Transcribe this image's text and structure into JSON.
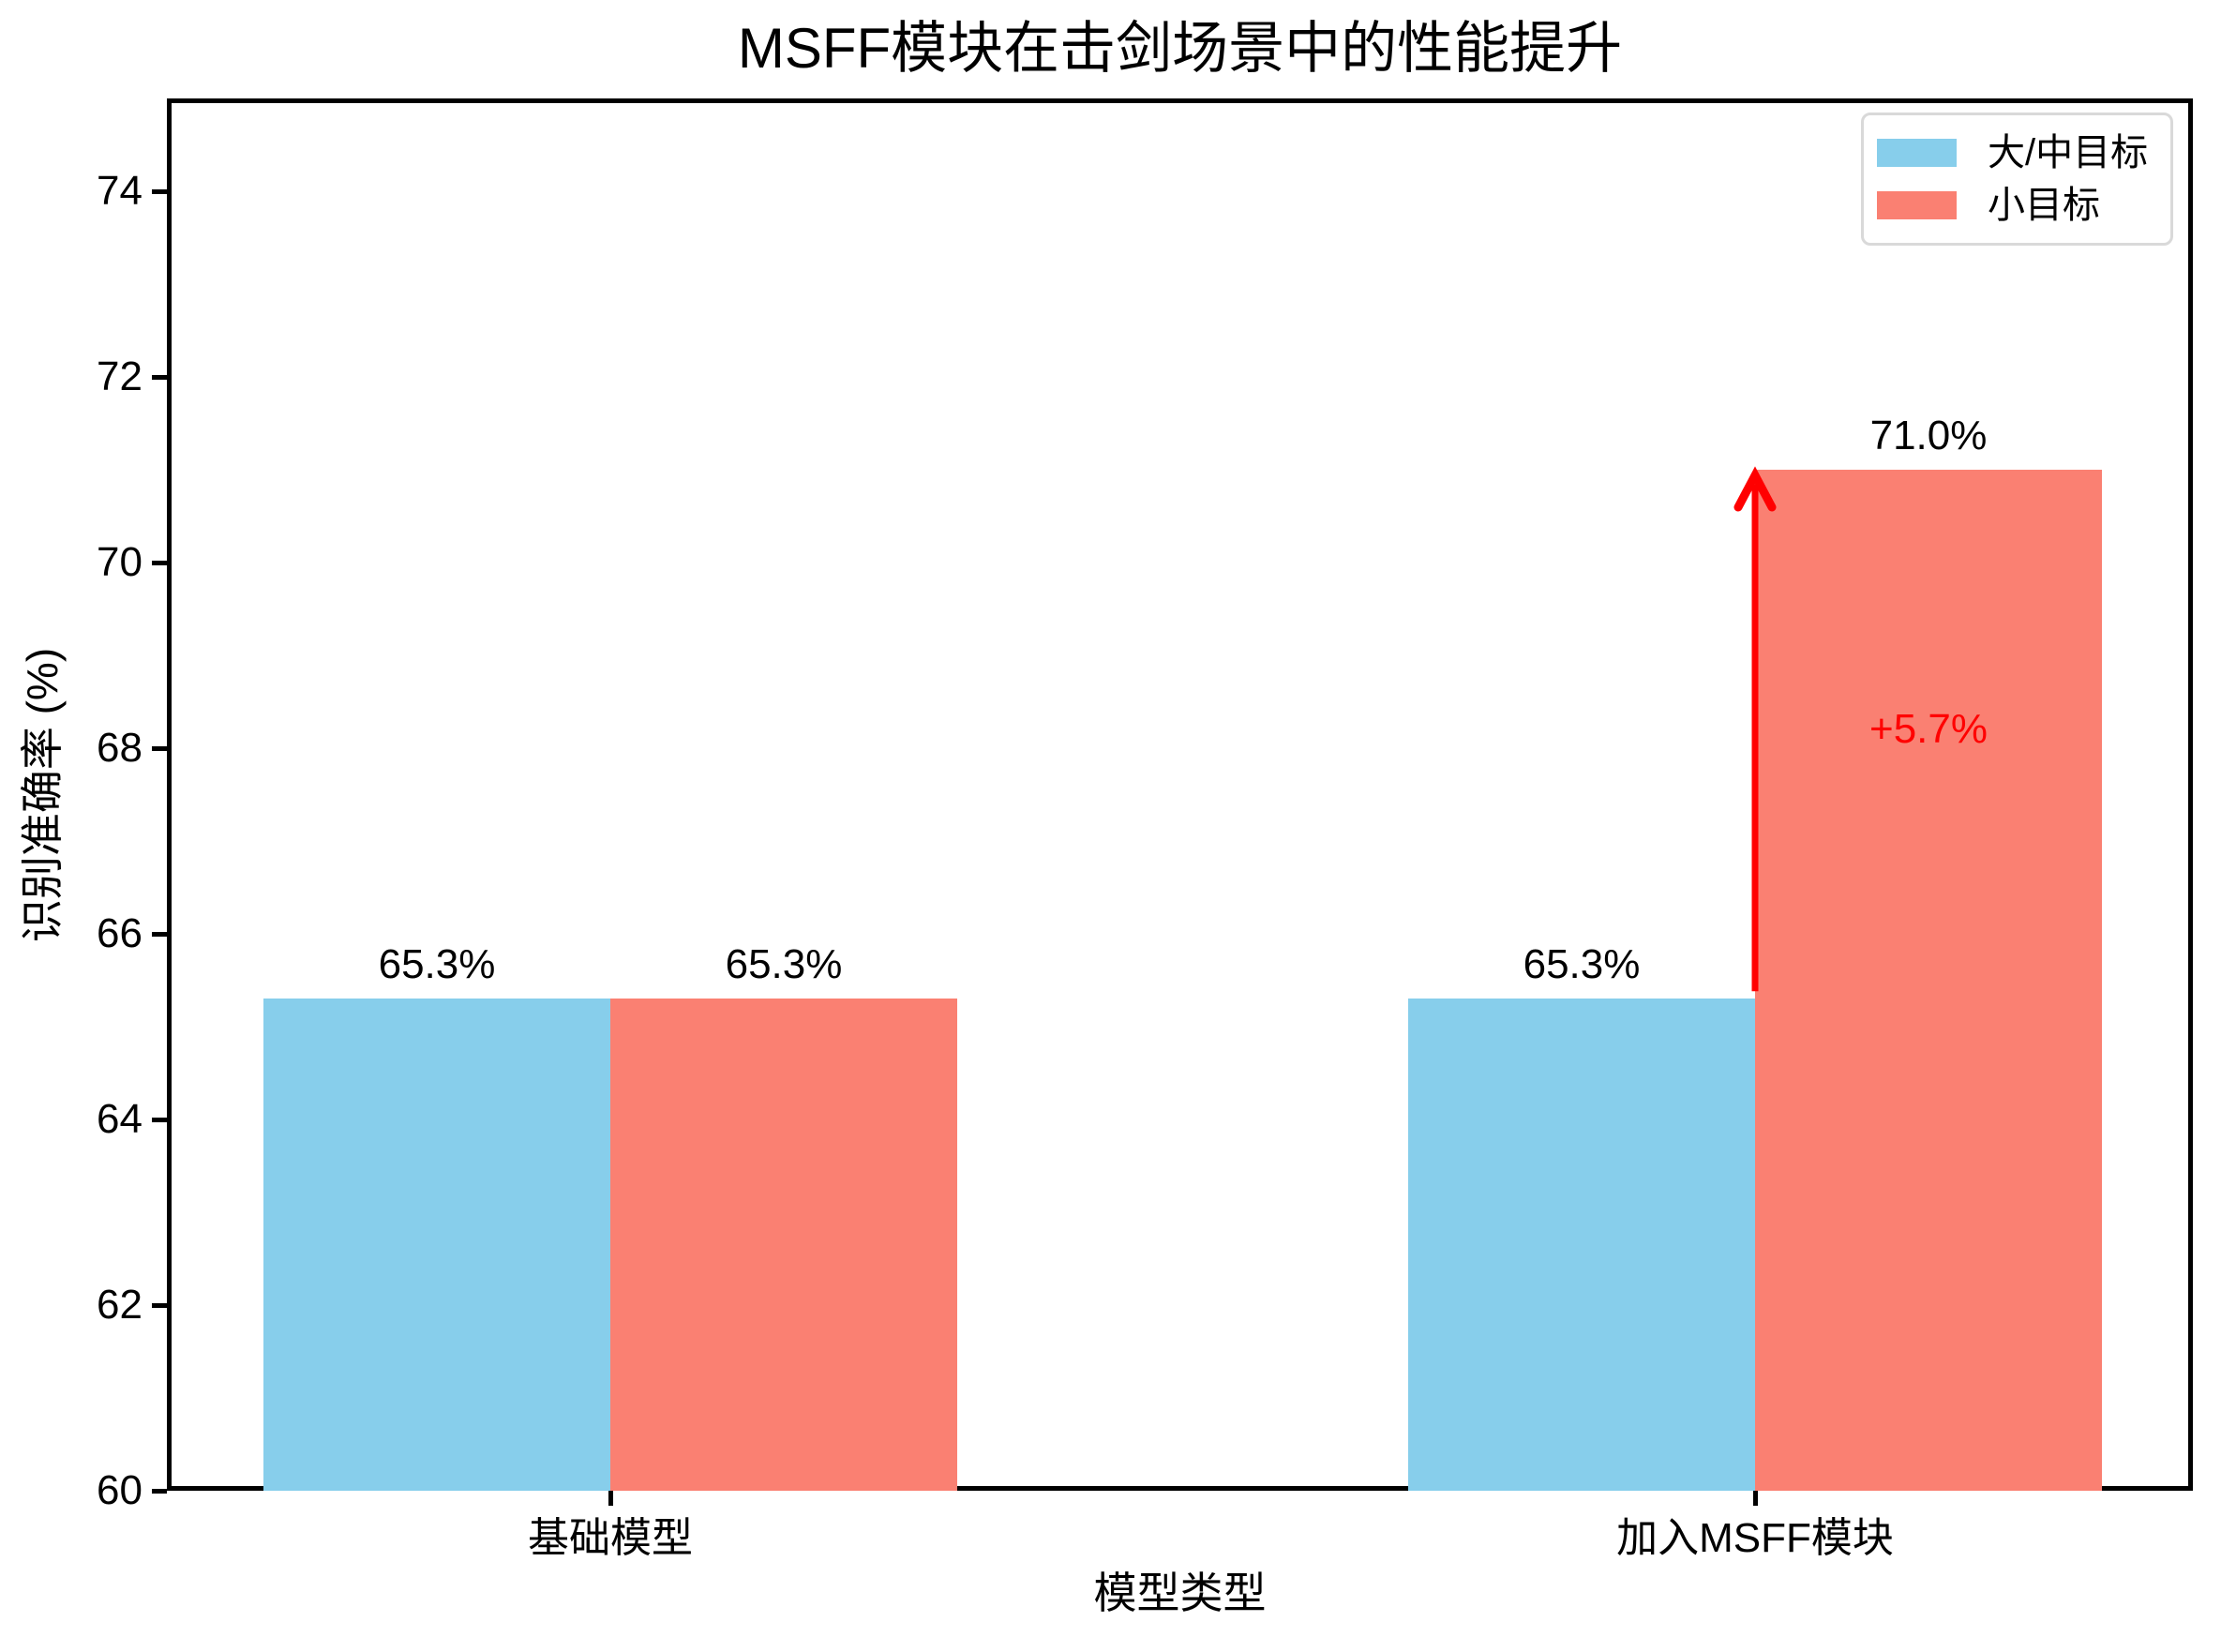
{
  "title": "MSFF模块在击剑场景中的性能提升",
  "chart_data": {
    "type": "bar",
    "categories": [
      "基础模型",
      "加入MSFF模块"
    ],
    "series": [
      {
        "name": "大/中目标",
        "color": "#87CEEB",
        "values": [
          65.3,
          65.3
        ],
        "labels": [
          "65.3%",
          "65.3%"
        ]
      },
      {
        "name": "小目标",
        "color": "#FA8072",
        "values": [
          65.3,
          71.0
        ],
        "labels": [
          "65.3%",
          "71.0%"
        ]
      }
    ],
    "xlabel": "模型类型",
    "ylabel": "识别准确率 (%)",
    "ylim": [
      60,
      75
    ],
    "yticks": [
      60,
      62,
      64,
      66,
      68,
      70,
      72,
      74
    ],
    "grid": false,
    "legend_position": "upper right",
    "annotation": {
      "text": "+5.7%",
      "color": "#FF0000",
      "category": 1,
      "series": 1,
      "label_at_value": 68.2,
      "arrow_from_value": 65.3,
      "arrow_to_value": 71.0
    }
  }
}
